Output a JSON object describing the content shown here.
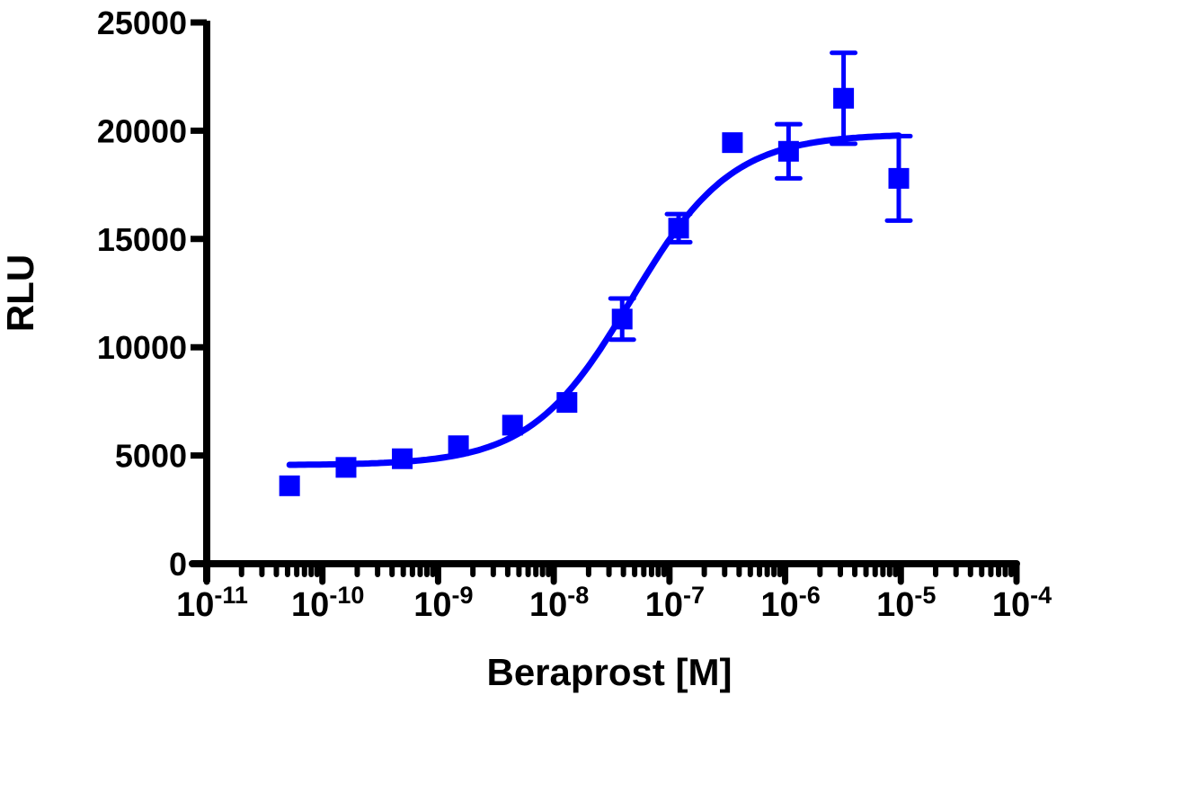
{
  "chart_data": {
    "type": "scatter",
    "title": "",
    "xlabel": "Beraprost [M]",
    "ylabel": "RLU",
    "x_scale": "log",
    "xlim": [
      1e-11,
      0.0001
    ],
    "ylim": [
      0,
      25000
    ],
    "grid": false,
    "x_ticks": [
      {
        "base": "10",
        "exp": "-11"
      },
      {
        "base": "10",
        "exp": "-10"
      },
      {
        "base": "10",
        "exp": "-9"
      },
      {
        "base": "10",
        "exp": "-8"
      },
      {
        "base": "10",
        "exp": "-7"
      },
      {
        "base": "10",
        "exp": "-6"
      },
      {
        "base": "10",
        "exp": "-5"
      },
      {
        "base": "10",
        "exp": "-4"
      }
    ],
    "y_ticks": [
      "0",
      "5000",
      "10000",
      "15000",
      "20000",
      "25000"
    ],
    "color": "#0000ff",
    "series": [
      {
        "marker": "square",
        "points": [
          {
            "x": 5.2e-11,
            "y": 3600
          },
          {
            "x": 1.6e-10,
            "y": 4450
          },
          {
            "x": 4.9e-10,
            "y": 4850
          },
          {
            "x": 1.5e-09,
            "y": 5450
          },
          {
            "x": 4.4e-09,
            "y": 6400
          },
          {
            "x": 1.3e-08,
            "y": 7450
          },
          {
            "x": 3.9e-08,
            "y": 11300,
            "err": 950
          },
          {
            "x": 1.2e-07,
            "y": 15500,
            "err": 650
          },
          {
            "x": 3.5e-07,
            "y": 19450
          },
          {
            "x": 1.07e-06,
            "y": 19050,
            "err": 1250
          },
          {
            "x": 3.2e-06,
            "y": 21500,
            "err": 2100
          },
          {
            "x": 9.6e-06,
            "y": 17800,
            "err": 1950
          }
        ],
        "fit": {
          "model": "sigmoidal dose-response",
          "bottom": 4550,
          "top": 19850,
          "logEC50": -7.33,
          "hill": 1.0,
          "x_range": [
            5.2e-11,
            9.6e-06
          ]
        }
      }
    ]
  }
}
